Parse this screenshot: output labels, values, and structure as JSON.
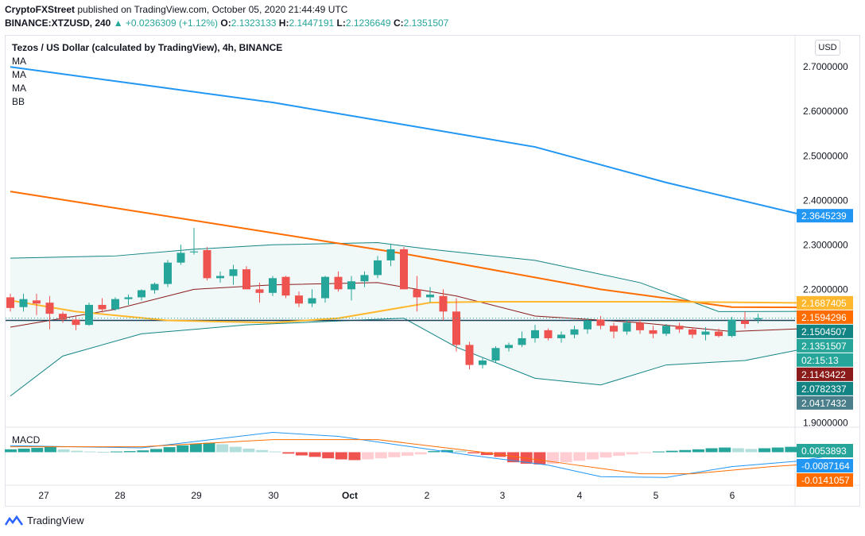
{
  "header": {
    "publisher": "CryptoFXStreet",
    "published_text": "published on TradingView.com, October 05, 2020 21:44:49 UTC",
    "symbol": "BINANCE:XTZUSD, 240",
    "change": "▲ +0.0236309 (+1.12%)",
    "o_label": "O:",
    "o_value": "2.1323133",
    "h_label": "H:",
    "h_value": "2.1447191",
    "l_label": "L:",
    "l_value": "2.1236649",
    "c_label": "C:",
    "c_value": "2.1351507"
  },
  "chart_title": "Tezos / US Dollar (calculated by TradingView), 4h, BINANCE",
  "indicators": [
    "MA",
    "MA",
    "MA",
    "BB"
  ],
  "currency_button": "USD",
  "footer": {
    "brand": "TradingView"
  },
  "colors": {
    "up": "#26a69a",
    "down": "#ef5350",
    "ma_blue": "#2196f3",
    "ma_orange": "#ff6d00",
    "ma_yellow": "#ffb82d",
    "bb": "#138484",
    "bb_fill": "#e6f3f3",
    "bb_basis": "#8b1a1a",
    "support": "#1c3f5a",
    "macd": "#2196f3",
    "signal": "#ff6d00"
  },
  "chart_data": {
    "type": "candlestick",
    "title": "Tezos / US Dollar (calculated by TradingView), 4h, BINANCE",
    "y_ticks": [
      "2.7000000",
      "2.6000000",
      "2.5000000",
      "2.4000000",
      "2.3000000",
      "2.2000000",
      "1.9000000"
    ],
    "y_range": [
      1.89,
      2.77
    ],
    "x_ticks": [
      "27",
      "28",
      "29",
      "30",
      "Oct",
      "2",
      "3",
      "4",
      "5",
      "6"
    ],
    "price_labels": [
      {
        "text": "2.3645239",
        "value": 2.3645239,
        "color": "#2196f3"
      },
      {
        "text": "2.1687405",
        "value": 2.1687405,
        "color": "#ffb82d"
      },
      {
        "text": "2.1594296",
        "value": 2.1594296,
        "color": "#ff6d00"
      },
      {
        "text": "2.1504507",
        "value": 2.1504507,
        "color": "#138484"
      },
      {
        "text": "2.1351507",
        "value": 2.1351507,
        "color": "#26a69a"
      },
      {
        "text": "02:15:13",
        "value": 2.123,
        "color": "#26a69a"
      },
      {
        "text": "2.1143422",
        "value": 2.1143422,
        "color": "#8b1a1a"
      },
      {
        "text": "2.0782337",
        "value": 2.0782337,
        "color": "#138484"
      },
      {
        "text": "2.0417432",
        "value": 2.0417432,
        "color": "#4a7e8a"
      }
    ],
    "support_level": 2.13,
    "candles": [
      [
        2.182,
        2.19,
        2.15,
        2.158
      ],
      [
        2.16,
        2.19,
        2.15,
        2.178
      ],
      [
        2.175,
        2.19,
        2.142,
        2.168
      ],
      [
        2.17,
        2.185,
        2.11,
        2.145
      ],
      [
        2.145,
        2.15,
        2.125,
        2.132
      ],
      [
        2.132,
        2.14,
        2.108,
        2.12
      ],
      [
        2.12,
        2.17,
        2.118,
        2.165
      ],
      [
        2.165,
        2.18,
        2.148,
        2.155
      ],
      [
        2.155,
        2.182,
        2.152,
        2.178
      ],
      [
        2.178,
        2.188,
        2.165,
        2.182
      ],
      [
        2.182,
        2.2,
        2.175,
        2.198
      ],
      [
        2.198,
        2.215,
        2.19,
        2.212
      ],
      [
        2.212,
        2.266,
        2.205,
        2.26
      ],
      [
        2.26,
        2.3,
        2.255,
        2.282
      ],
      [
        2.283,
        2.338,
        2.278,
        2.285
      ],
      [
        2.288,
        2.295,
        2.22,
        2.225
      ],
      [
        2.225,
        2.24,
        2.215,
        2.23
      ],
      [
        2.23,
        2.255,
        2.21,
        2.245
      ],
      [
        2.245,
        2.252,
        2.2,
        2.2
      ],
      [
        2.2,
        2.215,
        2.17,
        2.192
      ],
      [
        2.192,
        2.23,
        2.185,
        2.225
      ],
      [
        2.228,
        2.23,
        2.18,
        2.186
      ],
      [
        2.186,
        2.195,
        2.16,
        2.168
      ],
      [
        2.168,
        2.2,
        2.16,
        2.18
      ],
      [
        2.18,
        2.23,
        2.17,
        2.228
      ],
      [
        2.228,
        2.24,
        2.195,
        2.2
      ],
      [
        2.2,
        2.23,
        2.175,
        2.218
      ],
      [
        2.218,
        2.24,
        2.205,
        2.232
      ],
      [
        2.232,
        2.275,
        2.225,
        2.265
      ],
      [
        2.265,
        2.3,
        2.252,
        2.29
      ],
      [
        2.29,
        2.295,
        2.2,
        2.2
      ],
      [
        2.2,
        2.23,
        2.15,
        2.182
      ],
      [
        2.182,
        2.205,
        2.17,
        2.188
      ],
      [
        2.185,
        2.2,
        2.13,
        2.15
      ],
      [
        2.15,
        2.18,
        2.06,
        2.075
      ],
      [
        2.075,
        2.082,
        2.02,
        2.03
      ],
      [
        2.03,
        2.045,
        2.022,
        2.04
      ],
      [
        2.04,
        2.072,
        2.035,
        2.068
      ],
      [
        2.068,
        2.08,
        2.06,
        2.075
      ],
      [
        2.075,
        2.105,
        2.07,
        2.09
      ],
      [
        2.09,
        2.12,
        2.08,
        2.108
      ],
      [
        2.108,
        2.112,
        2.085,
        2.09
      ],
      [
        2.09,
        2.105,
        2.08,
        2.098
      ],
      [
        2.098,
        2.118,
        2.09,
        2.11
      ],
      [
        2.11,
        2.135,
        2.1,
        2.13
      ],
      [
        2.132,
        2.14,
        2.11,
        2.118
      ],
      [
        2.118,
        2.125,
        2.09,
        2.105
      ],
      [
        2.105,
        2.13,
        2.098,
        2.125
      ],
      [
        2.125,
        2.132,
        2.1,
        2.108
      ],
      [
        2.108,
        2.118,
        2.09,
        2.1
      ],
      [
        2.1,
        2.122,
        2.095,
        2.118
      ],
      [
        2.118,
        2.125,
        2.102,
        2.11
      ],
      [
        2.11,
        2.115,
        2.09,
        2.098
      ],
      [
        2.098,
        2.115,
        2.085,
        2.105
      ],
      [
        2.105,
        2.112,
        2.092,
        2.095
      ],
      [
        2.095,
        2.138,
        2.092,
        2.132
      ],
      [
        2.13,
        2.15,
        2.112,
        2.122
      ],
      [
        2.1323,
        2.1447,
        2.1237,
        2.1352
      ]
    ],
    "ma_blue": [
      [
        0,
        2.7
      ],
      [
        10,
        2.66
      ],
      [
        20,
        2.62
      ],
      [
        30,
        2.57
      ],
      [
        40,
        2.52
      ],
      [
        50,
        2.44
      ],
      [
        60,
        2.37
      ],
      [
        62.5,
        2.365
      ]
    ],
    "ma_orange": [
      [
        0,
        2.42
      ],
      [
        15,
        2.35
      ],
      [
        30,
        2.28
      ],
      [
        45,
        2.2
      ],
      [
        55,
        2.16
      ],
      [
        62.5,
        2.159
      ]
    ],
    "ma_yellow": [
      [
        0,
        2.175
      ],
      [
        5,
        2.15
      ],
      [
        12,
        2.13
      ],
      [
        20,
        2.125
      ],
      [
        25,
        2.135
      ],
      [
        32,
        2.17
      ],
      [
        36,
        2.172
      ],
      [
        50,
        2.172
      ],
      [
        62.5,
        2.169
      ]
    ],
    "bb_upper": [
      [
        0,
        2.27
      ],
      [
        8,
        2.275
      ],
      [
        14,
        2.29
      ],
      [
        20,
        2.3
      ],
      [
        28,
        2.305
      ],
      [
        32,
        2.29
      ],
      [
        40,
        2.265
      ],
      [
        48,
        2.215
      ],
      [
        54,
        2.15
      ],
      [
        62.5,
        2.1505
      ]
    ],
    "bb_lower": [
      [
        0,
        1.96
      ],
      [
        4,
        2.05
      ],
      [
        10,
        2.1
      ],
      [
        18,
        2.12
      ],
      [
        26,
        2.13
      ],
      [
        30,
        2.135
      ],
      [
        34,
        2.07
      ],
      [
        40,
        2.0
      ],
      [
        45,
        1.985
      ],
      [
        50,
        2.03
      ],
      [
        56,
        2.04
      ],
      [
        62.5,
        2.078
      ]
    ],
    "bb_basis": [
      [
        0,
        2.115
      ],
      [
        8,
        2.155
      ],
      [
        14,
        2.2
      ],
      [
        20,
        2.21
      ],
      [
        28,
        2.215
      ],
      [
        34,
        2.185
      ],
      [
        40,
        2.14
      ],
      [
        48,
        2.125
      ],
      [
        55,
        2.105
      ],
      [
        62.5,
        2.114
      ]
    ],
    "macd_panel": {
      "title": "MACD",
      "labels": [
        {
          "text": "0.0053893",
          "color": "#26a69a"
        },
        {
          "text": "-0.0087164",
          "color": "#2196f3"
        },
        {
          "text": "-0.0141057",
          "color": "#ff6d00"
        }
      ],
      "histogram": [
        0.8,
        1.0,
        1.2,
        1.5,
        0.8,
        0.4,
        0.2,
        0.1,
        0.2,
        0.3,
        0.5,
        0.9,
        1.4,
        1.9,
        2.3,
        2.6,
        2.2,
        1.5,
        1.0,
        0.6,
        0.2,
        -0.4,
        -0.9,
        -1.3,
        -1.7,
        -2.0,
        -2.2,
        -2.0,
        -1.7,
        -1.4,
        -1.0,
        -0.6,
        0.3,
        0.6,
        0.4,
        -0.3,
        -0.8,
        -1.3,
        -2.8,
        -3.2,
        -3.4,
        -3.2,
        -2.8,
        -2.4,
        -2.0,
        -1.5,
        -1.0,
        -0.6,
        -0.2,
        0.2,
        0.4,
        0.6,
        0.8,
        1.1,
        1.3,
        1.1,
        0.9,
        1.1,
        1.3,
        1.5,
        1.6,
        1.7
      ],
      "macd_line": [
        [
          0,
          1.8
        ],
        [
          10,
          1.2
        ],
        [
          20,
          5.5
        ],
        [
          25,
          4.4
        ],
        [
          35,
          -0.8
        ],
        [
          41,
          -3.6
        ],
        [
          45,
          -6.8
        ],
        [
          50,
          -7.0
        ],
        [
          55,
          -4.0
        ],
        [
          60,
          -2.5
        ],
        [
          62.5,
          -1.0
        ]
      ],
      "signal_line": [
        [
          0,
          1.5
        ],
        [
          10,
          1.5
        ],
        [
          20,
          3.5
        ],
        [
          28,
          3.5
        ],
        [
          36,
          0.0
        ],
        [
          42,
          -3.0
        ],
        [
          48,
          -6.0
        ],
        [
          52,
          -6.0
        ],
        [
          58,
          -4.0
        ],
        [
          62.5,
          -2.9
        ]
      ],
      "y_range": [
        -8.5,
        6.5
      ]
    }
  }
}
